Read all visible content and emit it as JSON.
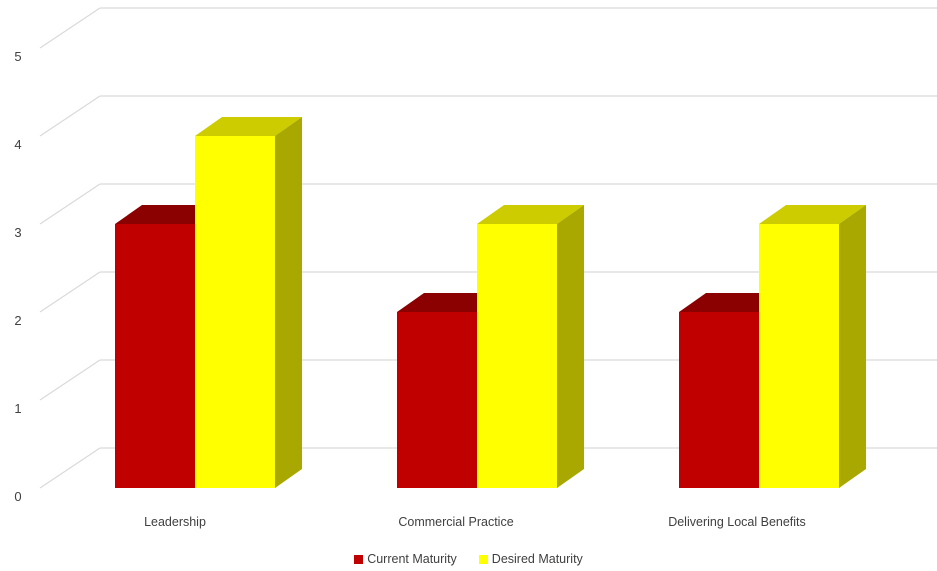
{
  "chart_data": {
    "type": "bar",
    "variant": "3d-clustered-column",
    "categories": [
      "Leadership",
      "Commercial Practice",
      "Delivering Local Benefits"
    ],
    "series": [
      {
        "name": "Current Maturity",
        "values": [
          3,
          2,
          2
        ],
        "color": "#C00000",
        "top_color": "#8B0000",
        "side_color": "#8B0000"
      },
      {
        "name": "Desired Maturity",
        "values": [
          4,
          3,
          3
        ],
        "color": "#FFFF00",
        "top_color": "#CCCC00",
        "side_color": "#A8A800"
      }
    ],
    "yticks": [
      "0",
      "1",
      "2",
      "3",
      "4",
      "5"
    ],
    "ylim": [
      0,
      5
    ],
    "grid": true,
    "gridline_color": "#D9D9D9",
    "legend_position": "bottom"
  }
}
